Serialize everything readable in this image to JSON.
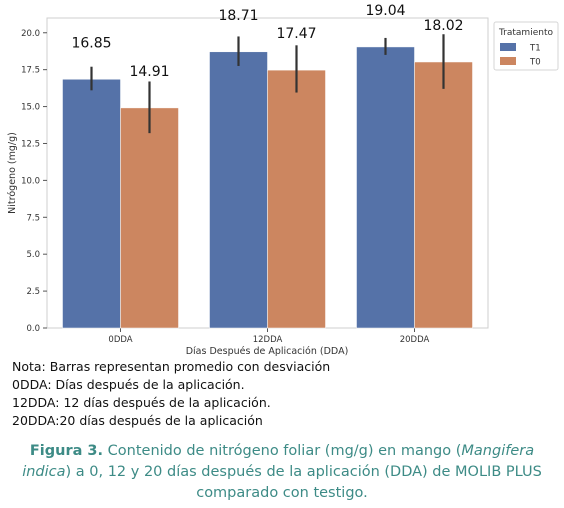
{
  "chart_data": {
    "type": "bar",
    "categories": [
      "0DDA",
      "12DDA",
      "20DDA"
    ],
    "series": [
      {
        "name": "T1",
        "values": [
          16.85,
          18.71,
          19.04
        ],
        "err_low": [
          16.1,
          17.75,
          18.5
        ],
        "err_high": [
          17.7,
          19.75,
          19.65
        ],
        "color": "#5572a8"
      },
      {
        "name": "T0",
        "values": [
          14.91,
          17.47,
          18.02
        ],
        "err_low": [
          13.2,
          15.95,
          16.2
        ],
        "err_high": [
          16.7,
          19.15,
          19.9
        ],
        "color": "#cc8660"
      }
    ],
    "data_labels": [
      "16.85",
      "14.91",
      "18.71",
      "17.47",
      "19.04",
      "18.02"
    ],
    "xlabel": "Días Después de Aplicación (DDA)",
    "ylabel": "Nitrógeno (mg/g)",
    "ylim": [
      0,
      21
    ],
    "yticks": [
      "0.0",
      "2.5",
      "5.0",
      "7.5",
      "10.0",
      "12.5",
      "15.0",
      "17.5",
      "20.0"
    ],
    "legend": {
      "title": "Tratamiento",
      "position": "outside-right"
    },
    "grid": false
  },
  "notes": [
    "Nota: Barras representan promedio con desviación",
    "0DDA: Días después de la aplicación.",
    "12DDA: 12 días después de la aplicación.",
    "20DDA:20 días después de la aplicación"
  ],
  "caption": {
    "label": "Figura 3.",
    "text_1": " Contenido de nitrógeno foliar (mg/g) en mango (",
    "species": "Mangifera indica",
    "text_2": ") a 0, 12 y 20 días después de la aplicación (DDA) de MOLIB PLUS comparado con testigo."
  }
}
